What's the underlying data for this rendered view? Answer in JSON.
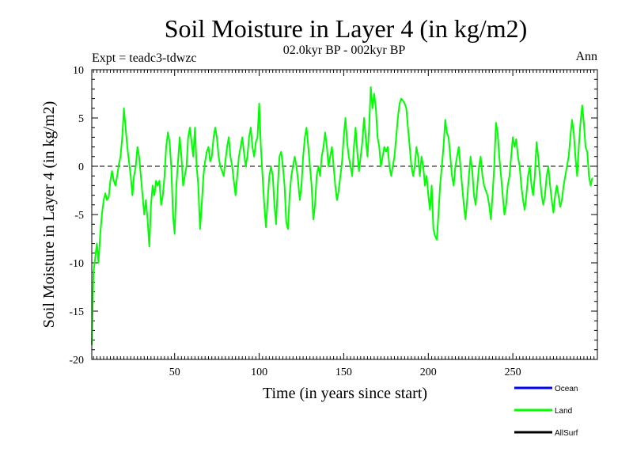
{
  "chart_data": {
    "type": "line",
    "title": "Soil Moisture in Layer 4 (in kg/m2)",
    "subtitle": "02.0kyr BP - 002kyr BP",
    "experiment_label": "Expt = teadc3-tdwzc",
    "season_label": "Ann",
    "xlabel": "Time (in years since start)",
    "ylabel": "Soil Moisture in Layer 4 (in kg/m2)",
    "xlim": [
      1,
      300
    ],
    "ylim": [
      -20,
      10
    ],
    "x_ticks": [
      50,
      100,
      150,
      200,
      250
    ],
    "y_ticks": [
      -20,
      -15,
      -10,
      -5,
      0,
      5,
      10
    ],
    "zero_line": true,
    "legend": {
      "placement": "bottom-right",
      "entries": [
        {
          "name": "Ocean",
          "color": "#0000ff"
        },
        {
          "name": "Land",
          "color": "#00ff00"
        },
        {
          "name": "AllSurf",
          "color": "#000000"
        }
      ]
    },
    "series": [
      {
        "name": "Land",
        "color": "#00ff00",
        "x_start": 1,
        "x_step": 1,
        "values": [
          -18.5,
          -11,
          -9.5,
          -8,
          -10,
          -7,
          -5,
          -3.5,
          -2.8,
          -3.5,
          -3.2,
          -1.5,
          -0.5,
          -1.5,
          -2,
          -1,
          0.2,
          1,
          3,
          6,
          4,
          2,
          0.5,
          -1,
          -3,
          -1,
          0,
          2,
          1,
          -1,
          -3,
          -5,
          -3.5,
          -5.5,
          -8.3,
          -4,
          -2,
          -3,
          -1.5,
          -2,
          -1.5,
          -4,
          -3,
          -1,
          2,
          3.5,
          2.5,
          0,
          -5,
          -7,
          -2,
          0.5,
          3,
          1,
          -2,
          -1,
          0,
          3,
          4,
          2.5,
          1,
          4,
          0,
          -2,
          -6.5,
          -4,
          -1,
          0.5,
          1.5,
          2,
          0.5,
          1,
          3,
          4,
          3,
          1,
          0,
          -0.5,
          -1,
          0.5,
          2,
          3,
          1,
          0,
          -1.5,
          -3,
          -1,
          1,
          2,
          3,
          1.5,
          0,
          1,
          3,
          4,
          2,
          1,
          2.5,
          3,
          6.5,
          2,
          -1,
          -4,
          -6.3,
          -3.5,
          -1,
          0,
          -1,
          -4,
          -6,
          -2,
          1,
          1.5,
          0,
          -2,
          -5.8,
          -6.5,
          -3,
          -1,
          0,
          1,
          0,
          -1.5,
          -3.5,
          -2,
          1,
          3,
          4,
          2,
          0,
          -2,
          -5.5,
          -4,
          -1,
          0,
          -1,
          1,
          2,
          3.5,
          2,
          0,
          1,
          2,
          0,
          -2,
          -3.5,
          -2.5,
          -1,
          0.5,
          3,
          5,
          2.5,
          1,
          0,
          -1,
          2,
          4,
          1.5,
          -0.5,
          1,
          2.5,
          5,
          3,
          1,
          4,
          8.2,
          6,
          7.5,
          6,
          3,
          2,
          0,
          1,
          2,
          1.5,
          2,
          0,
          -1,
          0,
          1,
          3,
          5,
          6.5,
          7,
          6.8,
          6.5,
          6,
          4,
          2,
          0,
          -1,
          0,
          2,
          1,
          -1,
          1,
          0,
          -2,
          -1,
          -3,
          -4.5,
          -2,
          -6.5,
          -7.2,
          -7.6,
          -5,
          -2,
          0,
          2,
          4.8,
          3.5,
          3,
          1,
          -1,
          -2,
          0,
          1,
          2,
          0,
          -2,
          -4,
          -5.5,
          -3.5,
          -1,
          1,
          -0.5,
          -3,
          -4,
          -2,
          0,
          1,
          -1,
          -2,
          -2.5,
          -3,
          -4,
          -5.5,
          -3,
          0,
          4.5,
          3.5,
          1,
          -1,
          -3,
          -5,
          -4,
          -2,
          -1,
          1,
          3,
          2,
          2.8,
          1,
          0,
          -2,
          -3.5,
          -4.5,
          -3,
          -1,
          0,
          -2,
          -3,
          -1,
          2.5,
          1,
          -1,
          -3,
          -4,
          -3,
          -1,
          0,
          -2,
          -3.5,
          -4.8,
          -3,
          -2,
          -3,
          -4.2,
          -3.5,
          -2,
          -1,
          0,
          1,
          3,
          4.8,
          3.5,
          1,
          -1,
          2,
          4.5,
          6.3,
          4.5,
          2,
          1.5,
          -1,
          -2,
          -1.2
        ]
      }
    ]
  }
}
